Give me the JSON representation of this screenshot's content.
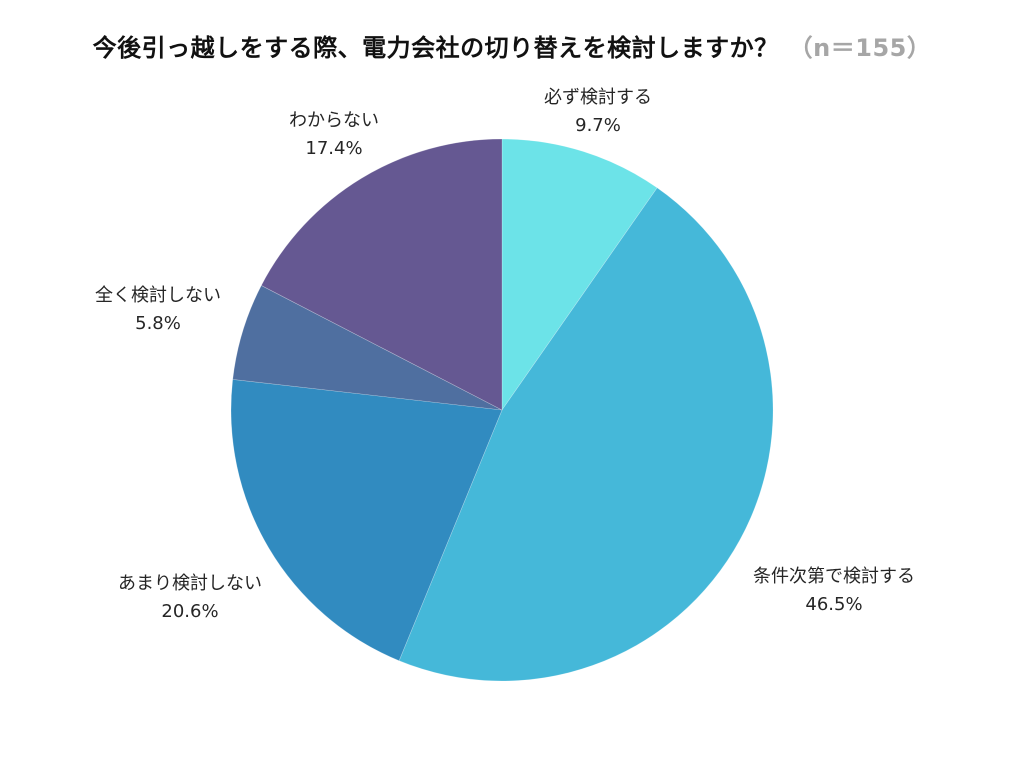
{
  "title": {
    "question": "今後引っ越しをする際、電力会社の切り替えを検討しますか？",
    "sample_size": "（n＝155）"
  },
  "chart_data": {
    "type": "pie",
    "title": "今後引っ越しをする際、電力会社の切り替えを検討しますか？（n＝155）",
    "n": 155,
    "start_angle_deg": 0,
    "direction": "clockwise",
    "categories": [
      "必ず検討する",
      "条件次第で検討する",
      "あまり検討しない",
      "全く検討しない",
      "わからない"
    ],
    "values": [
      9.7,
      46.5,
      20.6,
      5.8,
      17.4
    ],
    "unit": "%",
    "colors": [
      "#6ce3e8",
      "#45b8d9",
      "#318bc0",
      "#4f6fa0",
      "#655892"
    ],
    "legend": "none (direct labels)"
  },
  "labels": [
    {
      "name": "必ず検討する",
      "value": "9.7%"
    },
    {
      "name": "条件次第で検討する",
      "value": "46.5%"
    },
    {
      "name": "あまり検討しない",
      "value": "20.6%"
    },
    {
      "name": "全く検討しない",
      "value": "5.8%"
    },
    {
      "name": "わからない",
      "value": "17.4%"
    }
  ]
}
